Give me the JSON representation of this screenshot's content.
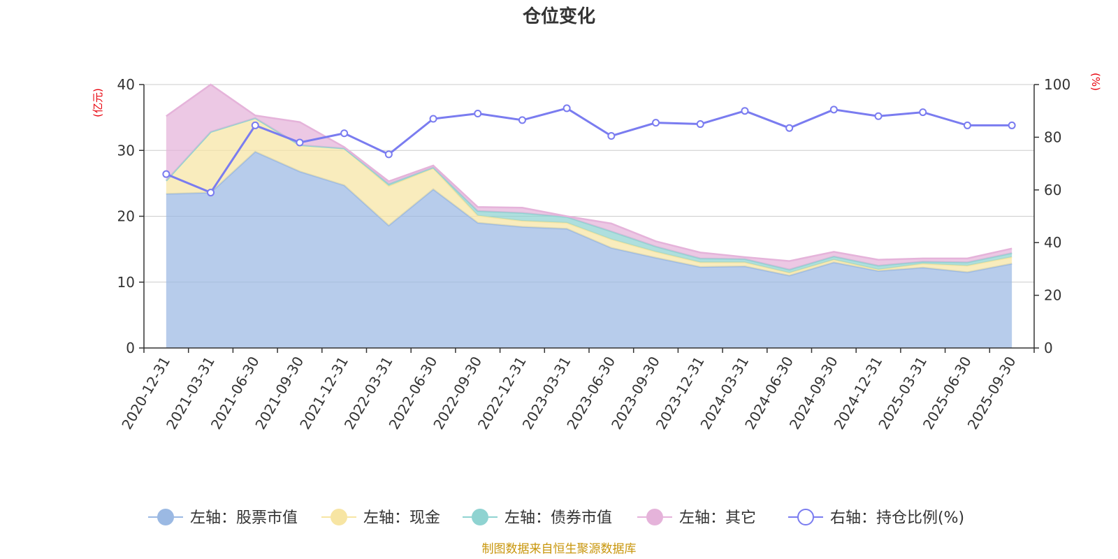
{
  "chart_data": {
    "type": "area",
    "title": "仓位变化",
    "source": "制图数据来自恒生聚源数据库",
    "left_axis": {
      "name": "(亿元)",
      "min": 0,
      "max": 40,
      "ticks": [
        "0",
        "10",
        "20",
        "30",
        "40"
      ]
    },
    "right_axis": {
      "name": "(%)",
      "min": 0,
      "max": 100,
      "ticks": [
        "0",
        "20",
        "40",
        "60",
        "80",
        "100"
      ]
    },
    "categories": [
      "2020-12-31",
      "2021-03-31",
      "2021-06-30",
      "2021-09-30",
      "2021-12-31",
      "2022-03-31",
      "2022-06-30",
      "2022-09-30",
      "2022-12-31",
      "2023-03-31",
      "2023-06-30",
      "2023-09-30",
      "2023-12-31",
      "2024-03-31",
      "2024-06-30",
      "2024-09-30",
      "2024-12-31",
      "2025-03-31",
      "2025-06-30",
      "2025-09-30"
    ],
    "series": [
      {
        "name": "左轴：股票市值",
        "axis": "left",
        "kind": "stacked-area",
        "values": [
          23.4,
          23.6,
          29.8,
          26.8,
          24.7,
          18.6,
          24.1,
          19.0,
          18.4,
          18.1,
          15.2,
          13.7,
          12.3,
          12.4,
          11.0,
          13.0,
          11.7,
          12.2,
          11.5,
          12.8
        ]
      },
      {
        "name": "左轴：现金",
        "axis": "left",
        "kind": "stacked-area",
        "values": [
          2.0,
          9.2,
          5.1,
          4.0,
          5.6,
          6.0,
          3.2,
          1.1,
          0.9,
          0.9,
          1.3,
          0.9,
          0.7,
          0.6,
          0.4,
          0.4,
          0.2,
          0.6,
          1.0,
          1.0
        ]
      },
      {
        "name": "左轴：债券市值",
        "axis": "left",
        "kind": "stacked-area",
        "values": [
          0.0,
          0.0,
          0.0,
          0.0,
          0.0,
          0.3,
          0.1,
          0.7,
          1.2,
          0.9,
          1.2,
          0.8,
          0.6,
          0.5,
          0.5,
          0.5,
          0.6,
          0.3,
          0.5,
          0.6
        ]
      },
      {
        "name": "左轴：其它",
        "axis": "left",
        "kind": "stacked-area",
        "values": [
          9.8,
          7.2,
          0.4,
          3.5,
          0.2,
          0.4,
          0.3,
          0.6,
          0.8,
          0.1,
          1.2,
          0.8,
          0.9,
          0.3,
          1.3,
          0.7,
          0.9,
          0.5,
          0.6,
          0.7
        ]
      },
      {
        "name": "右轴：持仓比例(%)",
        "axis": "right",
        "kind": "line",
        "values": [
          66.0,
          59.0,
          84.5,
          78.0,
          81.5,
          73.5,
          87.0,
          89.0,
          86.5,
          91.0,
          80.5,
          85.5,
          85.0,
          90.0,
          83.5,
          90.5,
          88.0,
          89.5,
          84.5,
          84.5
        ]
      }
    ],
    "colors": {
      "stock": "#9bb9e3",
      "cash": "#f7e5a3",
      "bond": "#8fd3d1",
      "other": "#e5b3da",
      "ratio": "#7a7cf0",
      "axis_name": "#e8000b",
      "source": "#c8960c",
      "grid": "#cccccc",
      "axis": "#333333"
    }
  }
}
